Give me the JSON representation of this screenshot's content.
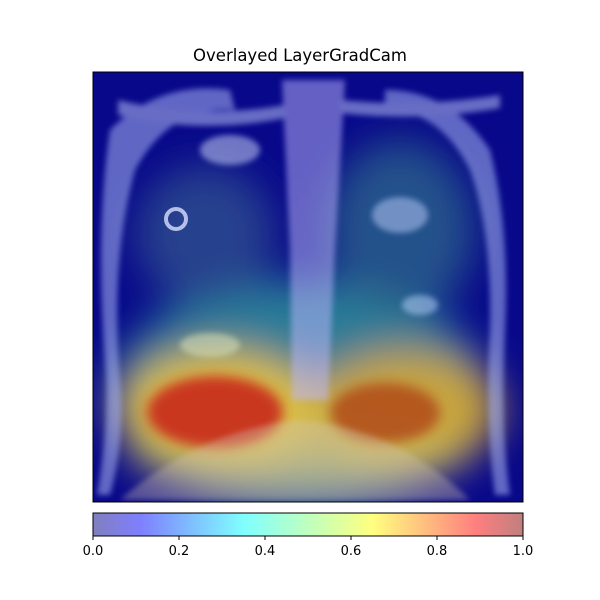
{
  "chart_data": {
    "type": "heatmap",
    "title": "Overlayed LayerGradCam",
    "xlabel": "",
    "ylabel": "",
    "axes_ticks_visible": false,
    "overlay": {
      "background": "grayscale chest x-ray",
      "colormap": "jet",
      "alpha": 0.5
    },
    "attribution_hotspots": [
      {
        "region": "lower-left lung field (right lung base)",
        "intensity": 1.0
      },
      {
        "region": "lower-right lung field (left lung base)",
        "intensity": 0.85
      },
      {
        "region": "central lower mediastinum",
        "intensity": 0.45
      },
      {
        "region": "upper lung fields",
        "intensity": 0.25
      },
      {
        "region": "image borders",
        "intensity": 0.0
      }
    ],
    "colorbar": {
      "orientation": "horizontal",
      "range": [
        0.0,
        1.0
      ],
      "ticks": [
        "0.0",
        "0.2",
        "0.4",
        "0.6",
        "0.8",
        "1.0"
      ]
    }
  }
}
